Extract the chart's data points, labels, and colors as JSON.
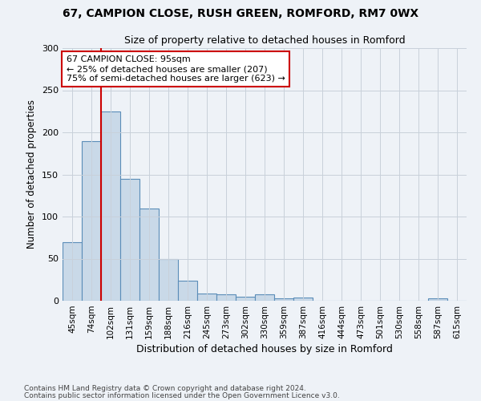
{
  "title_line1": "67, CAMPION CLOSE, RUSH GREEN, ROMFORD, RM7 0WX",
  "title_line2": "Size of property relative to detached houses in Romford",
  "xlabel": "Distribution of detached houses by size in Romford",
  "ylabel": "Number of detached properties",
  "bar_color": "#c9d9e8",
  "bar_edge_color": "#5b8db8",
  "categories": [
    "45sqm",
    "74sqm",
    "102sqm",
    "131sqm",
    "159sqm",
    "188sqm",
    "216sqm",
    "245sqm",
    "273sqm",
    "302sqm",
    "330sqm",
    "359sqm",
    "387sqm",
    "416sqm",
    "444sqm",
    "473sqm",
    "501sqm",
    "530sqm",
    "558sqm",
    "587sqm",
    "615sqm"
  ],
  "values": [
    70,
    190,
    225,
    145,
    110,
    50,
    24,
    9,
    8,
    5,
    8,
    3,
    4,
    0,
    0,
    0,
    0,
    0,
    0,
    3,
    0
  ],
  "vline_color": "#cc0000",
  "vline_x_index": 1.5,
  "annotation_text": "67 CAMPION CLOSE: 95sqm\n← 25% of detached houses are smaller (207)\n75% of semi-detached houses are larger (623) →",
  "annotation_box_color": "white",
  "annotation_box_edge_color": "#cc0000",
  "ylim": [
    0,
    300
  ],
  "yticks": [
    0,
    50,
    100,
    150,
    200,
    250,
    300
  ],
  "footer_line1": "Contains HM Land Registry data © Crown copyright and database right 2024.",
  "footer_line2": "Contains public sector information licensed under the Open Government Licence v3.0.",
  "bg_color": "#eef2f7",
  "grid_color": "#c8d0da"
}
